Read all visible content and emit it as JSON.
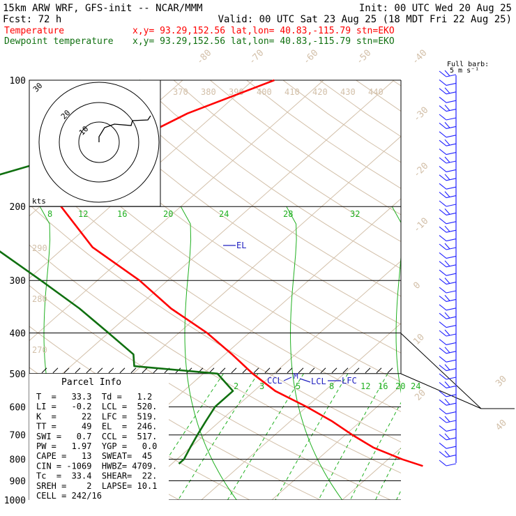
{
  "header": {
    "line1_left": "15km ARW WRF, GFS-init  -- NCAR/MMM",
    "line1_right": "Init: 00 UTC Wed 20 Aug 25",
    "line2_left": "Fcst:   72 h",
    "line2_right": "Valid: 00 UTC Sat 23 Aug 25 (18 MDT Fri 22 Aug 25)",
    "temp_label": "Temperature",
    "temp_info": "x,y= 93.29,152.56   lat,lon= 40.83,-115.79  stn=EKO",
    "dew_label": "Dewpoint temperature",
    "dew_info": "x,y= 93.29,152.56   lat,lon= 40.83,-115.79  stn=EKO"
  },
  "colors": {
    "temperature": "#ff0000",
    "dewpoint": "#107010",
    "isotherm": "#d2bfa8",
    "mixing_ratio": "#20b020",
    "barb": "#2020ff",
    "levels": "#2020c0"
  },
  "chart_data": {
    "type": "line",
    "diagram": "skew-T log-p",
    "pressure_ticks": [
      100,
      200,
      300,
      400,
      500,
      600,
      700,
      800,
      900,
      1000
    ],
    "isotherm_labels": [
      "-80",
      "-70",
      "-60",
      "-50",
      "-40",
      "-30",
      "-20",
      "-10",
      "0",
      "10",
      "20",
      "30",
      "40"
    ],
    "theta_labels": [
      "370",
      "380",
      "390",
      "400",
      "410",
      "420",
      "430",
      "440"
    ],
    "theta_side_labels": [
      "290",
      "280",
      "270"
    ],
    "mixing_ratio_top_labels": [
      "8",
      "12",
      "16",
      "20",
      "24",
      "28",
      "32"
    ],
    "mixing_ratio_low_labels": [
      "2",
      "3",
      "5",
      "8",
      "12",
      "16",
      "20",
      "24"
    ],
    "series": [
      {
        "name": "Temperature",
        "points": [
          [
            100,
            -57
          ],
          [
            120,
            -64
          ],
          [
            150,
            -69
          ],
          [
            200,
            -67
          ],
          [
            250,
            -56
          ],
          [
            300,
            -44
          ],
          [
            350,
            -35
          ],
          [
            400,
            -26
          ],
          [
            450,
            -19
          ],
          [
            500,
            -13
          ],
          [
            550,
            -7
          ],
          [
            600,
            0
          ],
          [
            650,
            6
          ],
          [
            700,
            11
          ],
          [
            750,
            16
          ],
          [
            800,
            22
          ],
          [
            830,
            26
          ]
        ]
      },
      {
        "name": "Dewpoint temperature",
        "points": [
          [
            100,
            -76
          ],
          [
            130,
            -74
          ],
          [
            160,
            -78
          ],
          [
            180,
            -85
          ],
          [
            200,
            -82
          ],
          [
            250,
            -70
          ],
          [
            300,
            -58
          ],
          [
            350,
            -48
          ],
          [
            400,
            -40
          ],
          [
            450,
            -33
          ],
          [
            480,
            -31
          ],
          [
            500,
            -18
          ],
          [
            550,
            -13
          ],
          [
            600,
            -13
          ],
          [
            650,
            -12
          ],
          [
            700,
            -11
          ],
          [
            750,
            -10
          ],
          [
            800,
            -9
          ],
          [
            820,
            -9
          ]
        ]
      }
    ],
    "annotations": {
      "el": "EL",
      "ccl": "CCL",
      "lcl": "LCL",
      "lfc": "LFC",
      "barb_title": "Full barb:",
      "barb_unit": "5 m s⁻¹"
    }
  },
  "hodograph": {
    "ring_labels": [
      "30",
      "20",
      "10"
    ],
    "unit": "kts"
  },
  "parcel_info": {
    "title": "Parcel Info",
    "rows": [
      "T  =   33.3  Td =   1.2",
      "LI =   -0.2  LCL =  520.",
      "K  =     22  LFC =  519.",
      "TT =     49  EL  =  246.",
      "SWI =   0.7  CCL =  517.",
      "PW =   1.97  YGP =   0.0",
      "CAPE =   13  SWEAT=  45",
      "CIN = -1069  HWBZ= 4709.",
      "Tc  =  33.4  SHEAR=  22.",
      "SREH =    2  LAPSE= 10.1",
      "CELL = 242/16"
    ]
  }
}
